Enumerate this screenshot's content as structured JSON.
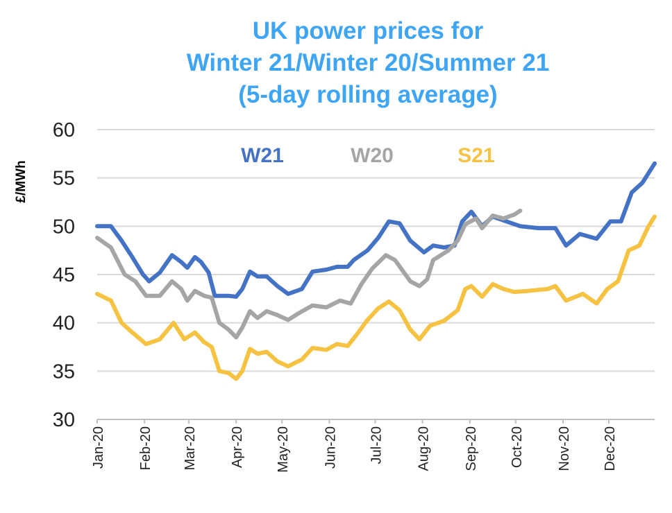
{
  "chart_data": {
    "type": "line",
    "title_lines": [
      "UK power prices for",
      "Winter 21/Winter 20/Summer 21",
      "(5-day rolling average)"
    ],
    "xlabel": "",
    "ylabel": "£/MWh",
    "xlim": [
      "2020-01-01",
      "2020-12-31"
    ],
    "ylim": [
      30,
      60
    ],
    "y_ticks": [
      "30",
      "35",
      "40",
      "45",
      "50",
      "55",
      "60"
    ],
    "x_ticks": [
      {
        "date": "2020-01-01",
        "label": "Jan-20"
      },
      {
        "date": "2020-02-01",
        "label": "Feb-20"
      },
      {
        "date": "2020-03-01",
        "label": "Mar-20"
      },
      {
        "date": "2020-04-01",
        "label": "Apr-20"
      },
      {
        "date": "2020-05-01",
        "label": "May-20"
      },
      {
        "date": "2020-06-01",
        "label": "Jun-20"
      },
      {
        "date": "2020-07-01",
        "label": "Jul-20"
      },
      {
        "date": "2020-08-01",
        "label": "Aug-20"
      },
      {
        "date": "2020-09-01",
        "label": "Sep-20"
      },
      {
        "date": "2020-10-01",
        "label": "Oct-20"
      },
      {
        "date": "2020-11-01",
        "label": "Nov-20"
      },
      {
        "date": "2020-12-01",
        "label": "Dec-20"
      }
    ],
    "grid": "horizontal",
    "legend_placement": "top, inline labels",
    "series": [
      {
        "name": "W21",
        "color": "#4472c4",
        "points": [
          [
            "2020-01-01",
            50.0
          ],
          [
            "2020-01-10",
            50.0
          ],
          [
            "2020-01-17",
            48.5
          ],
          [
            "2020-01-24",
            46.8
          ],
          [
            "2020-01-31",
            45.0
          ],
          [
            "2020-02-04",
            44.3
          ],
          [
            "2020-02-11",
            45.2
          ],
          [
            "2020-02-19",
            47.0
          ],
          [
            "2020-02-25",
            46.3
          ],
          [
            "2020-02-29",
            45.7
          ],
          [
            "2020-03-05",
            46.8
          ],
          [
            "2020-03-09",
            46.3
          ],
          [
            "2020-03-14",
            45.2
          ],
          [
            "2020-03-18",
            42.8
          ],
          [
            "2020-03-27",
            42.8
          ],
          [
            "2020-04-01",
            42.7
          ],
          [
            "2020-04-05",
            43.5
          ],
          [
            "2020-04-10",
            45.3
          ],
          [
            "2020-04-15",
            44.8
          ],
          [
            "2020-04-21",
            44.8
          ],
          [
            "2020-04-28",
            43.8
          ],
          [
            "2020-05-05",
            43.0
          ],
          [
            "2020-05-14",
            43.5
          ],
          [
            "2020-05-21",
            45.3
          ],
          [
            "2020-05-30",
            45.5
          ],
          [
            "2020-06-06",
            45.8
          ],
          [
            "2020-06-13",
            45.8
          ],
          [
            "2020-06-17",
            46.5
          ],
          [
            "2020-06-26",
            47.5
          ],
          [
            "2020-07-03",
            48.8
          ],
          [
            "2020-07-10",
            50.5
          ],
          [
            "2020-07-17",
            50.3
          ],
          [
            "2020-07-24",
            48.5
          ],
          [
            "2020-08-02",
            47.3
          ],
          [
            "2020-08-08",
            48.0
          ],
          [
            "2020-08-15",
            47.8
          ],
          [
            "2020-08-22",
            48.0
          ],
          [
            "2020-08-27",
            50.5
          ],
          [
            "2020-09-02",
            51.5
          ],
          [
            "2020-09-09",
            50.0
          ],
          [
            "2020-09-16",
            51.0
          ],
          [
            "2020-09-25",
            50.5
          ],
          [
            "2020-10-04",
            50.0
          ],
          [
            "2020-10-16",
            49.8
          ],
          [
            "2020-10-27",
            49.8
          ],
          [
            "2020-11-03",
            48.0
          ],
          [
            "2020-11-12",
            49.2
          ],
          [
            "2020-11-23",
            48.7
          ],
          [
            "2020-12-02",
            50.5
          ],
          [
            "2020-12-09",
            50.5
          ],
          [
            "2020-12-16",
            53.5
          ],
          [
            "2020-12-23",
            54.5
          ],
          [
            "2020-12-31",
            56.5
          ]
        ]
      },
      {
        "name": "W20",
        "color": "#a5a5a5",
        "points": [
          [
            "2020-01-01",
            48.8
          ],
          [
            "2020-01-10",
            47.8
          ],
          [
            "2020-01-19",
            45.0
          ],
          [
            "2020-01-26",
            44.3
          ],
          [
            "2020-02-02",
            42.8
          ],
          [
            "2020-02-11",
            42.8
          ],
          [
            "2020-02-19",
            44.3
          ],
          [
            "2020-02-25",
            43.5
          ],
          [
            "2020-02-29",
            42.3
          ],
          [
            "2020-03-05",
            43.3
          ],
          [
            "2020-03-11",
            42.8
          ],
          [
            "2020-03-16",
            42.6
          ],
          [
            "2020-03-21",
            40.0
          ],
          [
            "2020-03-27",
            39.3
          ],
          [
            "2020-04-01",
            38.5
          ],
          [
            "2020-04-05",
            39.5
          ],
          [
            "2020-04-10",
            41.2
          ],
          [
            "2020-04-15",
            40.5
          ],
          [
            "2020-04-21",
            41.2
          ],
          [
            "2020-04-28",
            40.8
          ],
          [
            "2020-05-05",
            40.3
          ],
          [
            "2020-05-12",
            41.0
          ],
          [
            "2020-05-21",
            41.8
          ],
          [
            "2020-05-30",
            41.6
          ],
          [
            "2020-06-08",
            42.3
          ],
          [
            "2020-06-15",
            42.0
          ],
          [
            "2020-06-22",
            44.0
          ],
          [
            "2020-06-29",
            45.6
          ],
          [
            "2020-07-08",
            47.0
          ],
          [
            "2020-07-14",
            46.5
          ],
          [
            "2020-07-24",
            44.3
          ],
          [
            "2020-07-30",
            43.8
          ],
          [
            "2020-08-04",
            44.5
          ],
          [
            "2020-08-08",
            46.5
          ],
          [
            "2020-08-18",
            47.5
          ],
          [
            "2020-08-24",
            48.5
          ],
          [
            "2020-08-29",
            50.2
          ],
          [
            "2020-09-05",
            50.8
          ],
          [
            "2020-09-09",
            49.8
          ],
          [
            "2020-09-16",
            51.1
          ],
          [
            "2020-09-23",
            50.8
          ],
          [
            "2020-09-30",
            51.2
          ],
          [
            "2020-10-04",
            51.6
          ]
        ]
      },
      {
        "name": "S21",
        "color": "#f5c242",
        "points": [
          [
            "2020-01-01",
            43.0
          ],
          [
            "2020-01-10",
            42.3
          ],
          [
            "2020-01-17",
            40.0
          ],
          [
            "2020-01-24",
            39.0
          ],
          [
            "2020-02-02",
            37.8
          ],
          [
            "2020-02-11",
            38.3
          ],
          [
            "2020-02-20",
            40.0
          ],
          [
            "2020-02-27",
            38.3
          ],
          [
            "2020-03-05",
            39.0
          ],
          [
            "2020-03-11",
            38.0
          ],
          [
            "2020-03-16",
            37.5
          ],
          [
            "2020-03-21",
            35.0
          ],
          [
            "2020-03-27",
            34.8
          ],
          [
            "2020-04-01",
            34.2
          ],
          [
            "2020-04-05",
            35.0
          ],
          [
            "2020-04-10",
            37.3
          ],
          [
            "2020-04-15",
            36.8
          ],
          [
            "2020-04-21",
            37.0
          ],
          [
            "2020-04-28",
            36.0
          ],
          [
            "2020-05-05",
            35.5
          ],
          [
            "2020-05-14",
            36.2
          ],
          [
            "2020-05-21",
            37.4
          ],
          [
            "2020-05-30",
            37.2
          ],
          [
            "2020-06-06",
            37.8
          ],
          [
            "2020-06-13",
            37.6
          ],
          [
            "2020-06-19",
            38.8
          ],
          [
            "2020-06-26",
            40.3
          ],
          [
            "2020-07-03",
            41.5
          ],
          [
            "2020-07-10",
            42.2
          ],
          [
            "2020-07-17",
            41.3
          ],
          [
            "2020-07-24",
            39.3
          ],
          [
            "2020-07-30",
            38.3
          ],
          [
            "2020-08-06",
            39.7
          ],
          [
            "2020-08-15",
            40.2
          ],
          [
            "2020-08-24",
            41.3
          ],
          [
            "2020-08-29",
            43.5
          ],
          [
            "2020-09-02",
            43.8
          ],
          [
            "2020-09-09",
            42.7
          ],
          [
            "2020-09-16",
            44.0
          ],
          [
            "2020-09-23",
            43.5
          ],
          [
            "2020-09-30",
            43.2
          ],
          [
            "2020-10-09",
            43.3
          ],
          [
            "2020-10-22",
            43.5
          ],
          [
            "2020-10-27",
            43.8
          ],
          [
            "2020-11-03",
            42.3
          ],
          [
            "2020-11-14",
            43.0
          ],
          [
            "2020-11-23",
            42.0
          ],
          [
            "2020-11-30",
            43.5
          ],
          [
            "2020-12-07",
            44.3
          ],
          [
            "2020-12-14",
            47.5
          ],
          [
            "2020-12-21",
            48.0
          ],
          [
            "2020-12-27",
            50.0
          ],
          [
            "2020-12-31",
            51.0
          ]
        ]
      }
    ]
  }
}
